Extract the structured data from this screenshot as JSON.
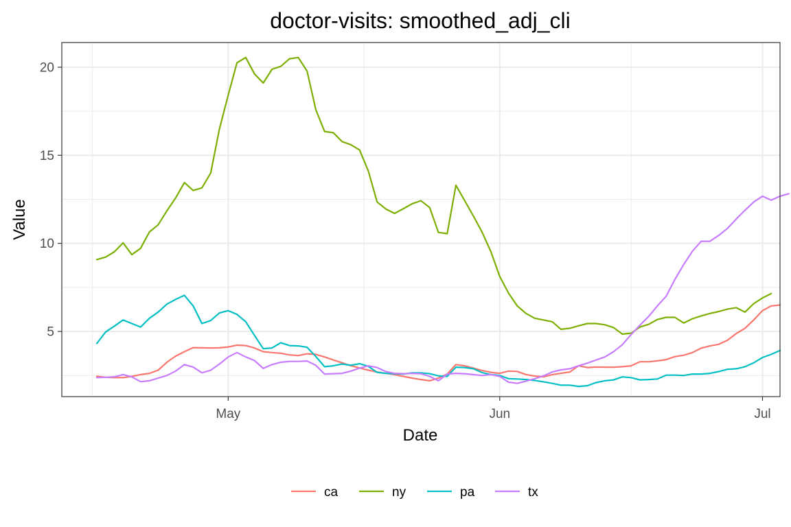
{
  "chart_data": {
    "type": "line",
    "title": "doctor-visits: smoothed_adj_cli",
    "xlabel": "Date",
    "ylabel": "Value",
    "x_start": "2020-04-16",
    "x_ticks": [
      {
        "date": "2020-05-01",
        "label": "May"
      },
      {
        "date": "2020-06-01",
        "label": "Jun"
      },
      {
        "date": "2020-07-01",
        "label": "Jul"
      }
    ],
    "y_ticks": [
      5,
      10,
      15,
      20
    ],
    "ylim": [
      1.3,
      21.4
    ],
    "xlim": [
      "2020-04-12",
      "2020-07-03"
    ],
    "grid": true,
    "legend_position": "bottom",
    "series": [
      {
        "name": "ca",
        "color": "#F8766D",
        "values": [
          2.45,
          2.4,
          2.38,
          2.38,
          2.45,
          2.55,
          2.62,
          2.8,
          3.25,
          3.6,
          3.85,
          4.08,
          4.07,
          4.06,
          4.07,
          4.12,
          4.22,
          4.2,
          4.06,
          3.85,
          3.8,
          3.76,
          3.67,
          3.63,
          3.73,
          3.7,
          3.55,
          3.38,
          3.22,
          3.05,
          2.93,
          2.8,
          2.7,
          2.62,
          2.55,
          2.45,
          2.35,
          2.27,
          2.2,
          2.35,
          2.58,
          3.12,
          3.05,
          2.92,
          2.78,
          2.68,
          2.62,
          2.75,
          2.73,
          2.55,
          2.47,
          2.42,
          2.55,
          2.63,
          2.7,
          3.05,
          2.95,
          2.98,
          2.97,
          2.97,
          3.0,
          3.05,
          3.28,
          3.28,
          3.33,
          3.4,
          3.57,
          3.65,
          3.8,
          4.05,
          4.18,
          4.27,
          4.5,
          4.88,
          5.18,
          5.65,
          6.18,
          6.45,
          6.5
        ]
      },
      {
        "name": "ny",
        "color": "#7CAE00",
        "values": [
          9.08,
          9.22,
          9.52,
          10.03,
          9.36,
          9.72,
          10.65,
          11.05,
          11.85,
          12.58,
          13.45,
          13.0,
          13.15,
          14.0,
          16.5,
          18.42,
          20.25,
          20.55,
          19.62,
          19.1,
          19.88,
          20.05,
          20.48,
          20.55,
          19.78,
          17.6,
          16.35,
          16.28,
          15.78,
          15.6,
          15.3,
          14.1,
          12.35,
          11.95,
          11.7,
          11.97,
          12.25,
          12.42,
          12.03,
          10.62,
          10.55,
          13.3,
          12.42,
          11.55,
          10.62,
          9.52,
          8.12,
          7.18,
          6.45,
          6.02,
          5.75,
          5.65,
          5.55,
          5.12,
          5.18,
          5.32,
          5.45,
          5.45,
          5.38,
          5.22,
          4.85,
          4.9,
          5.25,
          5.4,
          5.68,
          5.8,
          5.8,
          5.48,
          5.72,
          5.88,
          6.02,
          6.13,
          6.27,
          6.35,
          6.1,
          6.58,
          6.9,
          7.15
        ]
      },
      {
        "name": "pa",
        "color": "#00BFC4",
        "values": [
          4.32,
          4.97,
          5.3,
          5.65,
          5.45,
          5.25,
          5.75,
          6.1,
          6.55,
          6.82,
          7.05,
          6.45,
          5.45,
          5.62,
          6.05,
          6.18,
          5.97,
          5.55,
          4.78,
          4.02,
          4.06,
          4.36,
          4.2,
          4.18,
          4.1,
          3.58,
          3.0,
          3.05,
          3.15,
          3.08,
          3.17,
          3.02,
          2.68,
          2.62,
          2.6,
          2.58,
          2.65,
          2.65,
          2.6,
          2.48,
          2.45,
          2.97,
          2.95,
          2.88,
          2.66,
          2.55,
          2.5,
          2.32,
          2.3,
          2.27,
          2.22,
          2.14,
          2.05,
          1.95,
          1.95,
          1.88,
          1.92,
          2.1,
          2.2,
          2.25,
          2.42,
          2.38,
          2.25,
          2.27,
          2.3,
          2.52,
          2.52,
          2.5,
          2.58,
          2.58,
          2.62,
          2.72,
          2.85,
          2.88,
          3.0,
          3.22,
          3.52,
          3.7,
          3.92
        ]
      },
      {
        "name": "tx",
        "color": "#C77CFF",
        "values": [
          2.38,
          2.4,
          2.42,
          2.55,
          2.42,
          2.15,
          2.2,
          2.35,
          2.5,
          2.75,
          3.12,
          2.98,
          2.65,
          2.8,
          3.15,
          3.55,
          3.8,
          3.55,
          3.35,
          2.9,
          3.12,
          3.25,
          3.3,
          3.3,
          3.32,
          3.08,
          2.58,
          2.6,
          2.62,
          2.75,
          2.92,
          3.05,
          2.95,
          2.72,
          2.62,
          2.6,
          2.62,
          2.6,
          2.45,
          2.2,
          2.58,
          2.62,
          2.6,
          2.55,
          2.5,
          2.55,
          2.45,
          2.12,
          2.05,
          2.18,
          2.32,
          2.48,
          2.7,
          2.82,
          2.88,
          3.05,
          3.2,
          3.38,
          3.55,
          3.85,
          4.25,
          4.82,
          5.35,
          5.85,
          6.45,
          7.0,
          7.95,
          8.8,
          9.55,
          10.12,
          10.12,
          10.45,
          10.85,
          11.38,
          11.88,
          12.35,
          12.68,
          12.45,
          12.68,
          12.82
        ]
      }
    ]
  }
}
